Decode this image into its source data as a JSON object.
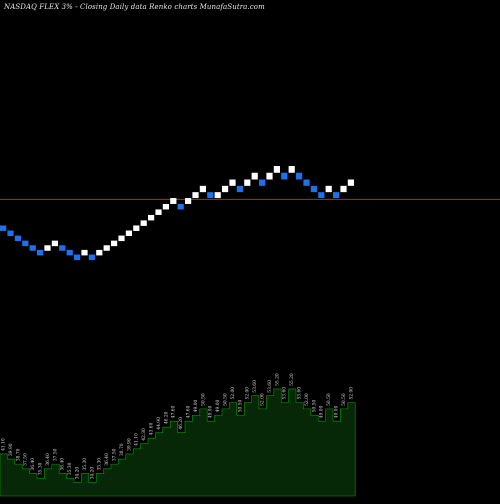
{
  "chart_data": {
    "type": "renko",
    "title": "NASDAQ FLEX  3% -  Closing Daily data  Renko  charts MunafaSutra.com",
    "grid": false,
    "background": "#000000",
    "colors": {
      "up_brick": "#ffffff",
      "down_brick": "#1e72e8",
      "reference_line": "#a0342a",
      "volume_fill": "#062806",
      "volume_edge": "#00a000",
      "label_text": "#d8d8d8"
    },
    "price_range": [
      26.5,
      59
    ],
    "reference_price": 47.3,
    "bricks": [
      {
        "dir": "down",
        "low": 39.9,
        "high": 41.1
      },
      {
        "dir": "down",
        "low": 38.7,
        "high": 39.9
      },
      {
        "dir": "down",
        "low": 37.5,
        "high": 38.7
      },
      {
        "dir": "down",
        "low": 36.4,
        "high": 37.5
      },
      {
        "dir": "down",
        "low": 35.3,
        "high": 36.4
      },
      {
        "dir": "down",
        "low": 34.2,
        "high": 35.3
      },
      {
        "dir": "up",
        "low": 35.3,
        "high": 36.4
      },
      {
        "dir": "up",
        "low": 36.4,
        "high": 37.5
      },
      {
        "dir": "down",
        "low": 35.3,
        "high": 36.4
      },
      {
        "dir": "down",
        "low": 34.2,
        "high": 35.3
      },
      {
        "dir": "down",
        "low": 33.2,
        "high": 34.2
      },
      {
        "dir": "up",
        "low": 34.2,
        "high": 35.3
      },
      {
        "dir": "down",
        "low": 33.2,
        "high": 34.2
      },
      {
        "dir": "up",
        "low": 34.2,
        "high": 35.3
      },
      {
        "dir": "up",
        "low": 35.3,
        "high": 36.4
      },
      {
        "dir": "up",
        "low": 36.4,
        "high": 37.5
      },
      {
        "dir": "up",
        "low": 37.5,
        "high": 38.7
      },
      {
        "dir": "up",
        "low": 38.7,
        "high": 39.9
      },
      {
        "dir": "up",
        "low": 39.9,
        "high": 41.1
      },
      {
        "dir": "up",
        "low": 41.1,
        "high": 42.3
      },
      {
        "dir": "up",
        "low": 42.3,
        "high": 43.6
      },
      {
        "dir": "up",
        "low": 43.6,
        "high": 44.9
      },
      {
        "dir": "up",
        "low": 44.9,
        "high": 46.2
      },
      {
        "dir": "up",
        "low": 46.2,
        "high": 47.6
      },
      {
        "dir": "down",
        "low": 44.9,
        "high": 46.2
      },
      {
        "dir": "up",
        "low": 46.2,
        "high": 47.6
      },
      {
        "dir": "up",
        "low": 47.6,
        "high": 49.0
      },
      {
        "dir": "up",
        "low": 49.0,
        "high": 50.5
      },
      {
        "dir": "down",
        "low": 47.6,
        "high": 49.0
      },
      {
        "dir": "up",
        "low": 47.6,
        "high": 49.0
      },
      {
        "dir": "up",
        "low": 49.0,
        "high": 50.5
      },
      {
        "dir": "up",
        "low": 50.5,
        "high": 52.0
      },
      {
        "dir": "down",
        "low": 49.0,
        "high": 50.5
      },
      {
        "dir": "up",
        "low": 50.5,
        "high": 52.0
      },
      {
        "dir": "up",
        "low": 52.0,
        "high": 53.6
      },
      {
        "dir": "down",
        "low": 50.5,
        "high": 52.0
      },
      {
        "dir": "up",
        "low": 52.0,
        "high": 53.6
      },
      {
        "dir": "up",
        "low": 53.6,
        "high": 55.2
      },
      {
        "dir": "down",
        "low": 52.0,
        "high": 53.6
      },
      {
        "dir": "up",
        "low": 53.6,
        "high": 55.2
      },
      {
        "dir": "down",
        "low": 52.0,
        "high": 53.6
      },
      {
        "dir": "down",
        "low": 50.5,
        "high": 52.0
      },
      {
        "dir": "down",
        "low": 49.0,
        "high": 50.5
      },
      {
        "dir": "down",
        "low": 47.6,
        "high": 49.0
      },
      {
        "dir": "up",
        "low": 49.0,
        "high": 50.5
      },
      {
        "dir": "down",
        "low": 47.6,
        "high": 49.0
      },
      {
        "dir": "up",
        "low": 49.0,
        "high": 50.5
      },
      {
        "dir": "up",
        "low": 50.5,
        "high": 52.0
      }
    ],
    "close_labels": [
      "41.10",
      "39.90",
      "38.70",
      "37.50",
      "36.40",
      "35.30",
      "36.40",
      "37.50",
      "36.40",
      "35.30",
      "34.20",
      "35.30",
      "34.20",
      "35.30",
      "36.40",
      "37.50",
      "38.70",
      "39.90",
      "41.10",
      "42.30",
      "43.60",
      "44.90",
      "46.20",
      "47.60",
      "46.20",
      "47.60",
      "49.00",
      "50.50",
      "49.00",
      "49.00",
      "50.50",
      "52.00",
      "50.50",
      "52.00",
      "53.60",
      "52.00",
      "53.60",
      "55.20",
      "53.60",
      "55.20",
      "53.60",
      "52.00",
      "50.50",
      "49.00",
      "50.50",
      "49.00",
      "50.50",
      "52.00"
    ]
  }
}
